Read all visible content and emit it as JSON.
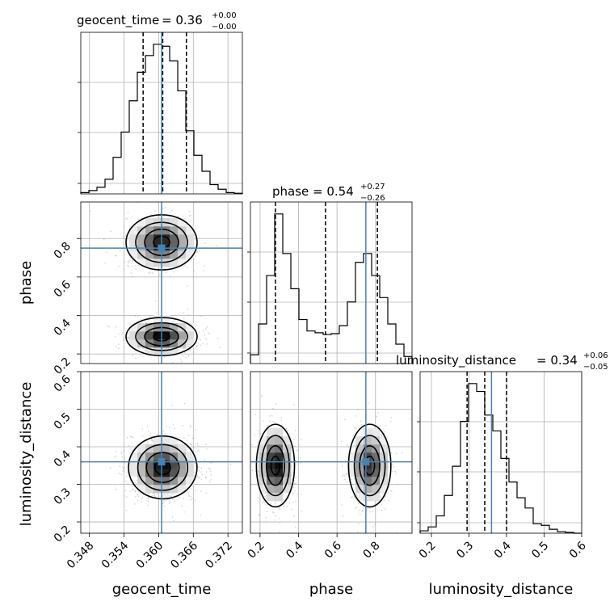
{
  "chart_data": {
    "type": "corner",
    "parameters": [
      "geocent_time",
      "phase",
      "luminosity_distance"
    ],
    "truths": {
      "geocent_time": 0.3605,
      "phase": 0.75,
      "luminosity_distance": 0.36
    },
    "titles": {
      "geocent_time": {
        "label": "geocent_time",
        "median": "0.36",
        "plus": "+0.00",
        "minus": "−0.00"
      },
      "phase": {
        "label": "phase",
        "median": "0.54",
        "plus": "+0.27",
        "minus": "−0.26"
      },
      "luminosity_distance": {
        "label": "luminosity_distance",
        "median": "0.34",
        "plus": "+0.06",
        "minus": "−0.05"
      }
    },
    "ranges": {
      "geocent_time": [
        0.3465,
        0.3745
      ],
      "phase": [
        0.15,
        0.99
      ],
      "luminosity_distance": [
        0.17,
        0.6
      ]
    },
    "x_ticks": {
      "geocent_time": [
        "0.348",
        "0.354",
        "0.360",
        "0.366",
        "0.372"
      ],
      "phase": [
        "0.2",
        "0.4",
        "0.6",
        "0.8"
      ],
      "luminosity_distance": [
        "0.2",
        "0.3",
        "0.4",
        "0.5",
        "0.6"
      ]
    },
    "y_ticks": {
      "phase": [
        "0.2",
        "0.4",
        "0.6",
        "0.8"
      ],
      "luminosity_distance": [
        "0.2",
        "0.3",
        "0.4",
        "0.5",
        "0.6"
      ]
    },
    "quantiles": {
      "geocent_time": [
        0.3573,
        0.3607,
        0.3648
      ],
      "phase": [
        0.28,
        0.54,
        0.81
      ],
      "luminosity_distance": [
        0.295,
        0.342,
        0.4
      ]
    },
    "histograms": {
      "geocent_time": {
        "edges": [
          0.3465,
          0.3479,
          0.3493,
          0.3507,
          0.3521,
          0.3535,
          0.3549,
          0.3563,
          0.3577,
          0.3591,
          0.3605,
          0.3619,
          0.3633,
          0.3647,
          0.3661,
          0.3675,
          0.3689,
          0.3703,
          0.3717,
          0.3731,
          0.3745
        ],
        "counts": [
          2,
          5,
          10,
          22,
          55,
          93,
          140,
          183,
          208,
          225,
          222,
          200,
          155,
          95,
          58,
          34,
          14,
          7,
          2,
          1
        ]
      },
      "phase": {
        "edges": [
          0.15,
          0.192,
          0.234,
          0.276,
          0.318,
          0.36,
          0.402,
          0.444,
          0.486,
          0.528,
          0.57,
          0.612,
          0.654,
          0.696,
          0.738,
          0.78,
          0.822,
          0.864,
          0.906,
          0.948,
          0.99
        ],
        "counts": [
          10,
          45,
          100,
          170,
          125,
          85,
          50,
          37,
          35,
          33,
          34,
          43,
          70,
          115,
          125,
          100,
          75,
          45,
          22,
          8
        ]
      },
      "luminosity_distance": {
        "edges": [
          0.17,
          0.1915,
          0.213,
          0.2345,
          0.256,
          0.2775,
          0.299,
          0.3205,
          0.342,
          0.3635,
          0.385,
          0.4065,
          0.428,
          0.4495,
          0.471,
          0.4925,
          0.514,
          0.5355,
          0.557,
          0.5785,
          0.6
        ],
        "counts": [
          3,
          8,
          22,
          48,
          85,
          142,
          190,
          180,
          150,
          130,
          95,
          65,
          45,
          32,
          12,
          10,
          5,
          2,
          1,
          0
        ]
      }
    },
    "pair_modes": {
      "phase_vs_geocent_time": [
        {
          "x": 0.3605,
          "y": 0.78,
          "sx": 0.0028,
          "sy": 0.065,
          "w": 1.0
        },
        {
          "x": 0.3605,
          "y": 0.29,
          "sx": 0.0028,
          "sy": 0.045,
          "w": 1.05
        }
      ],
      "luminosity_distance_vs_geocent_time": [
        {
          "x": 0.3607,
          "y": 0.345,
          "sx": 0.0027,
          "sy": 0.038,
          "w": 1.0
        }
      ],
      "luminosity_distance_vs_phase": [
        {
          "x": 0.28,
          "y": 0.35,
          "sx": 0.045,
          "sy": 0.05,
          "w": 1.0
        },
        {
          "x": 0.77,
          "y": 0.35,
          "sx": 0.05,
          "sy": 0.05,
          "w": 0.85
        }
      ]
    },
    "colors": {
      "truth": "#4682b4",
      "hist": "#000000",
      "grid": "#b0b0b0"
    }
  }
}
